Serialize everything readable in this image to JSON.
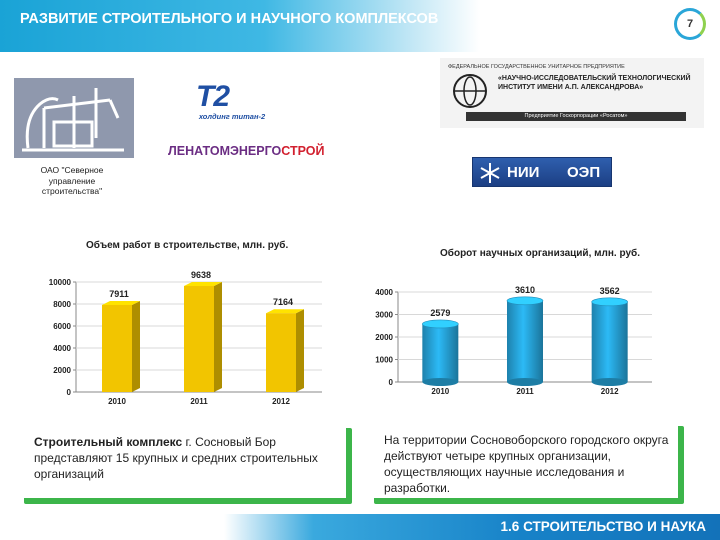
{
  "header": {
    "title": "РАЗВИТИЕ СТРОИТЕЛЬНОГО И НАУЧНОГО КОМПЛЕКСОВ",
    "page_number": "7"
  },
  "logos": {
    "t2": {
      "mark": "T2",
      "sub": "холдинг титан-2"
    },
    "lenatom": {
      "part1": "ЛЕНАТОМЭНЕРГО",
      "part2": "СТРОЙ"
    },
    "niti": {
      "top": "Федеральное государственное унитарное предприятие",
      "main": "«Научно-исследовательский технологический институт имени А.П. Александрова»",
      "bottom": "Предприятие Госкорпорации «Росатом»"
    },
    "nii_oep": {
      "left": "НИИ",
      "right": "ОЭП"
    }
  },
  "sevstroy_caption": "ОАО \"Северное управление строительства\"",
  "chart_data": [
    {
      "type": "bar",
      "title": "Объем работ в строительстве, млн. руб.",
      "categories": [
        "2010",
        "2011",
        "2012"
      ],
      "values": [
        7911,
        9638,
        7164
      ],
      "ylim": [
        0,
        10000
      ],
      "yticks": [
        0,
        2000,
        4000,
        6000,
        8000,
        10000
      ],
      "color": "#f2c500"
    },
    {
      "type": "bar",
      "title": "Оборот научных организаций, млн. руб.",
      "categories": [
        "2010",
        "2011",
        "2012"
      ],
      "values": [
        2579,
        3610,
        3562
      ],
      "ylim": [
        0,
        4000
      ],
      "yticks": [
        0,
        1000,
        2000,
        3000,
        4000
      ],
      "color": "#27a6dc"
    }
  ],
  "text_left": {
    "bold": "Строительный комплекс",
    "rest": " г. Сосновый Бор представляют 15 крупных и средних строительных организаций"
  },
  "text_right": "На территории Сосновоборского городского округа действуют четыре крупных организации, осуществляющих научные исследования и разработки.",
  "footer": {
    "title": "1.6 СТРОИТЕЛЬСТВО И НАУКА"
  }
}
